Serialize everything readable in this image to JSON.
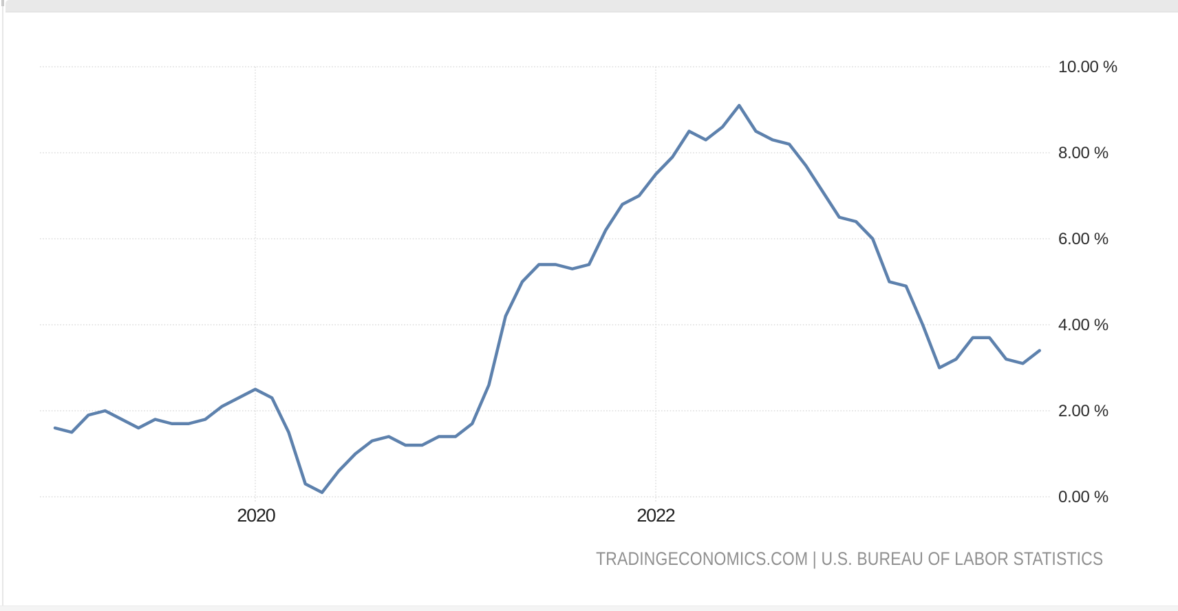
{
  "chart_data": {
    "type": "line",
    "title": "",
    "x_start": "2019-01",
    "x_frequency": "monthly",
    "unit": "%",
    "values": [
      1.6,
      1.5,
      1.9,
      2.0,
      1.8,
      1.6,
      1.8,
      1.7,
      1.7,
      1.8,
      2.1,
      2.3,
      2.5,
      2.3,
      1.5,
      0.3,
      0.1,
      0.6,
      1.0,
      1.3,
      1.4,
      1.2,
      1.2,
      1.4,
      1.4,
      1.7,
      2.6,
      4.2,
      5.0,
      5.4,
      5.4,
      5.3,
      5.4,
      6.2,
      6.8,
      7.0,
      7.5,
      7.9,
      8.5,
      8.3,
      8.6,
      9.1,
      8.5,
      8.3,
      8.2,
      7.7,
      7.1,
      6.5,
      6.4,
      6.0,
      5.0,
      4.9,
      4.0,
      3.0,
      3.2,
      3.7,
      3.7,
      3.2,
      3.1,
      3.4
    ],
    "ylim": [
      0,
      10
    ],
    "y_tick_step": 2,
    "y_tick_labels": [
      "10.00 %",
      "8.00 %",
      "6.00 %",
      "4.00 %",
      "2.00 %",
      "0.00 %"
    ],
    "x_ticks": [
      {
        "label": "2020",
        "month_index": 12
      },
      {
        "label": "2022",
        "month_index": 36
      }
    ],
    "grid": "dotted",
    "legend": "none",
    "line_color": "#5d81ad",
    "gridline_color": "#c9c9c9"
  },
  "footer": {
    "attribution": "TRADINGECONOMICS.COM | U.S. BUREAU OF LABOR STATISTICS"
  }
}
